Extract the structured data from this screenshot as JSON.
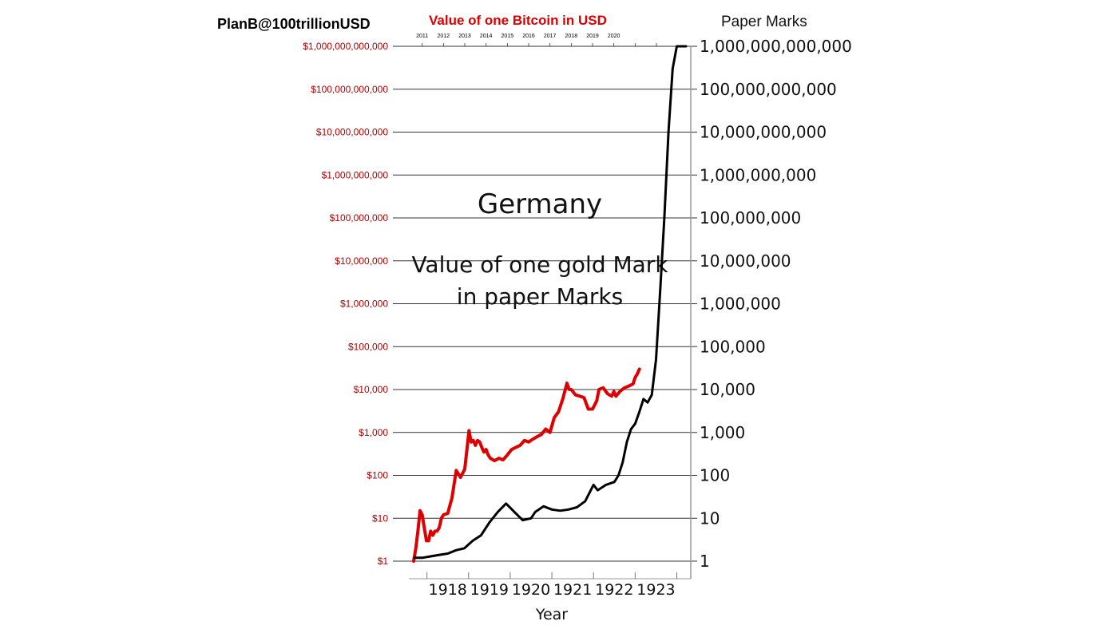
{
  "header": {
    "author": "PlanB@100trillionUSD",
    "bitcoin_title": "Value of one Bitcoin in USD",
    "paper_title": "Paper Marks"
  },
  "colors": {
    "bitcoin": "#dd0000",
    "mark": "#000000",
    "grid": "#333333",
    "left_labels": "#b00000",
    "bitcoin_title": "#dd0000"
  },
  "chart_data": {
    "type": "line",
    "yscale": "log",
    "ylim": [
      1,
      1000000000000
    ],
    "grid": true,
    "xlabel": "Year",
    "top_axis": {
      "xlim": [
        2010.6,
        2022.3
      ],
      "ticks": [
        "2011",
        "2012",
        "2013",
        "2014",
        "2015",
        "2016",
        "2017",
        "2018",
        "2019",
        "2020"
      ]
    },
    "bottom_axis": {
      "xlim": [
        1917.2,
        1923.72
      ],
      "ticks": [
        "1918",
        "1919",
        "1920",
        "1921",
        "1922",
        "1923"
      ]
    },
    "left_ticks": [
      "$1",
      "$10",
      "$100",
      "$1,000",
      "$10,000",
      "$100,000",
      "$1,000,000",
      "$10,000,000",
      "$100,000,000",
      "$1,000,000,000",
      "$10,000,000,000",
      "$100,000,000,000",
      "$1,000,000,000,000"
    ],
    "right_ticks": [
      "1",
      "10",
      "100",
      "1,000",
      "10,000",
      "100,000",
      "1,000,000",
      "10,000,000",
      "100,000,000",
      "1,000,000,000",
      "10,000,000,000",
      "100,000,000,000",
      "1,000,000,000,000"
    ],
    "annotations": [
      {
        "text": "Germany",
        "style": "big"
      },
      {
        "text": "Value of one gold Mark",
        "style": "normal"
      },
      {
        "text": "in paper Marks",
        "style": "normal"
      }
    ],
    "series": [
      {
        "axis": "top",
        "color": "#dd0000",
        "x": [
          2010.6,
          2010.7,
          2010.8,
          2010.9,
          2011.0,
          2011.1,
          2011.2,
          2011.3,
          2011.4,
          2011.5,
          2011.6,
          2011.7,
          2011.8,
          2011.9,
          2012.0,
          2012.2,
          2012.4,
          2012.6,
          2012.8,
          2013.0,
          2013.2,
          2013.3,
          2013.4,
          2013.5,
          2013.6,
          2013.7,
          2013.8,
          2013.9,
          2014.0,
          2014.1,
          2014.2,
          2014.4,
          2014.6,
          2014.8,
          2015.0,
          2015.2,
          2015.4,
          2015.6,
          2015.8,
          2016.0,
          2016.2,
          2016.4,
          2016.6,
          2016.8,
          2017.0,
          2017.2,
          2017.4,
          2017.6,
          2017.8,
          2017.9,
          2018.0,
          2018.2,
          2018.4,
          2018.6,
          2018.8,
          2019.0,
          2019.2,
          2019.3,
          2019.5,
          2019.7,
          2019.9,
          2020.0,
          2020.1,
          2020.3,
          2020.5,
          2020.7,
          2020.9,
          2021.0,
          2021.1,
          2021.2
        ],
        "values": [
          1,
          2,
          5,
          15,
          12,
          6,
          3,
          3,
          5,
          4,
          5,
          5,
          6,
          10,
          12,
          13,
          30,
          130,
          90,
          140,
          1100,
          600,
          650,
          500,
          650,
          600,
          450,
          350,
          400,
          300,
          250,
          220,
          250,
          230,
          300,
          400,
          450,
          500,
          650,
          600,
          700,
          800,
          900,
          1200,
          1000,
          2200,
          3000,
          6000,
          14000,
          10000,
          10000,
          7500,
          7000,
          6500,
          3500,
          3500,
          5500,
          10000,
          11000,
          8000,
          7000,
          9000,
          7000,
          9200,
          11000,
          12000,
          13500,
          19000,
          23000,
          30000
        ]
      },
      {
        "axis": "bottom",
        "color": "#000000",
        "x": [
          1917.2,
          1917.4,
          1917.6,
          1917.8,
          1918.0,
          1918.2,
          1918.4,
          1918.6,
          1918.8,
          1919.0,
          1919.2,
          1919.4,
          1919.6,
          1919.8,
          1920.0,
          1920.1,
          1920.3,
          1920.5,
          1920.7,
          1920.9,
          1921.1,
          1921.3,
          1921.5,
          1921.6,
          1921.8,
          1921.9,
          1922.0,
          1922.1,
          1922.2,
          1922.3,
          1922.4,
          1922.5,
          1922.6,
          1922.7,
          1922.8,
          1922.9,
          1923.0,
          1923.1,
          1923.2,
          1923.3,
          1923.4,
          1923.5,
          1923.6,
          1923.72
        ],
        "values": [
          1.2,
          1.2,
          1.3,
          1.4,
          1.5,
          1.8,
          2,
          3,
          4,
          8,
          14,
          22,
          14,
          9,
          10,
          14,
          19,
          16,
          15,
          16,
          18,
          25,
          60,
          45,
          60,
          65,
          70,
          100,
          200,
          600,
          1200,
          1600,
          3000,
          6000,
          5000,
          7500,
          50000,
          2000000,
          100000000,
          10000000000,
          300000000000,
          1000000000000,
          1000000000000,
          1000000000000
        ]
      }
    ]
  }
}
